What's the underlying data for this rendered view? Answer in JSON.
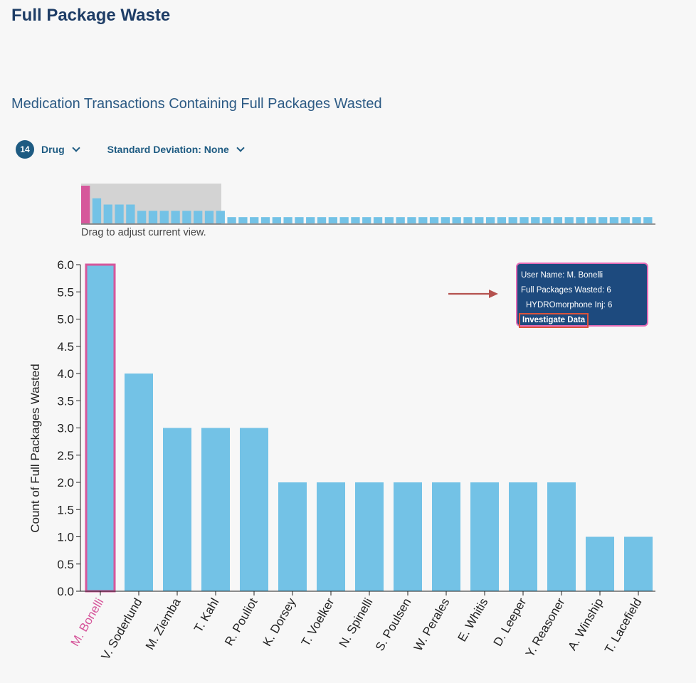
{
  "page": {
    "title": "Full Package Waste"
  },
  "chart_title": "Medication Transactions Containing Full Packages Wasted",
  "filters": {
    "drug_count": "14",
    "drug_label": "Drug",
    "std_dev_label": "Standard Deviation: None"
  },
  "navigator": {
    "hint": "Drag to adjust current view.",
    "values": [
      6,
      4,
      3,
      3,
      3,
      2,
      2,
      2,
      2,
      2,
      2,
      2,
      2,
      1,
      1,
      1,
      1,
      1,
      1,
      1,
      1,
      1,
      1,
      1,
      1,
      1,
      1,
      1,
      1,
      1,
      1,
      1,
      1,
      1,
      1,
      1,
      1,
      1,
      1,
      1,
      1,
      1,
      1,
      1,
      1,
      1,
      1,
      1,
      1,
      1,
      1
    ]
  },
  "tooltip": {
    "user_line": "User Name: M. Bonelli",
    "total_line": "Full Packages Wasted: 6",
    "drug_line": "HYDROmorphone Inj: 6",
    "action_label": "Investigate Data"
  },
  "colors": {
    "bar": "#73c2e6",
    "highlight": "#d6579b",
    "navigator_mask": "#d3d3d3",
    "arrow": "#b5524f"
  },
  "chart_data": {
    "type": "bar",
    "title": "Medication Transactions Containing Full Packages Wasted",
    "xlabel": "",
    "ylabel": "Count of Full Packages Wasted",
    "ylim": [
      0,
      6
    ],
    "yticks": [
      "0.0",
      "0.5",
      "1.0",
      "1.5",
      "2.0",
      "2.5",
      "3.0",
      "3.5",
      "4.0",
      "4.5",
      "5.0",
      "5.5",
      "6.0"
    ],
    "categories": [
      "M. Bonelli",
      "V. Soderlund",
      "M. Ziemba",
      "T. Kahl",
      "R. Pouliot",
      "K. Dorsey",
      "T. Voelker",
      "N. Spinelli",
      "S. Poulsen",
      "W. Perales",
      "E. Whitis",
      "D. Leeper",
      "Y. Reasoner",
      "A. Winship",
      "T. Lacefield"
    ],
    "values": [
      6,
      4,
      3,
      3,
      3,
      2,
      2,
      2,
      2,
      2,
      2,
      2,
      2,
      1,
      1
    ],
    "highlighted": "M. Bonelli"
  }
}
